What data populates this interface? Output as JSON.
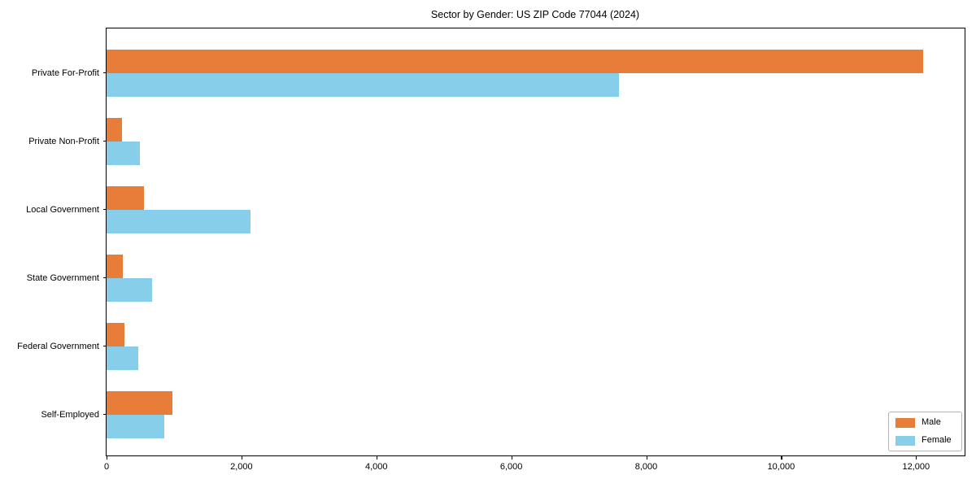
{
  "figure": {
    "background": "#ffffff"
  },
  "chart_data": {
    "type": "bar",
    "orientation": "horizontal",
    "title": "Sector by Gender: US ZIP Code 77044 (2024)",
    "xlabel": "",
    "ylabel": "",
    "categories": [
      "Private For-Profit",
      "Private Non-Profit",
      "Local Government",
      "State Government",
      "Federal Government",
      "Self-Employed"
    ],
    "series": [
      {
        "name": "Male",
        "color": "#e87d3a",
        "values": [
          12100,
          230,
          560,
          240,
          260,
          980
        ]
      },
      {
        "name": "Female",
        "color": "#87ceeb",
        "values": [
          7600,
          490,
          2140,
          680,
          470,
          860
        ]
      }
    ],
    "xlim": [
      0,
      12720
    ],
    "xticks": {
      "values": [
        0,
        2000,
        4000,
        6000,
        8000,
        10000,
        12000
      ],
      "labels": [
        "0",
        "2,000",
        "4,000",
        "6,000",
        "8,000",
        "10,000",
        "12,000"
      ]
    },
    "grid": false,
    "legend": {
      "position": "lower right",
      "entries": [
        "Male",
        "Female"
      ]
    }
  }
}
